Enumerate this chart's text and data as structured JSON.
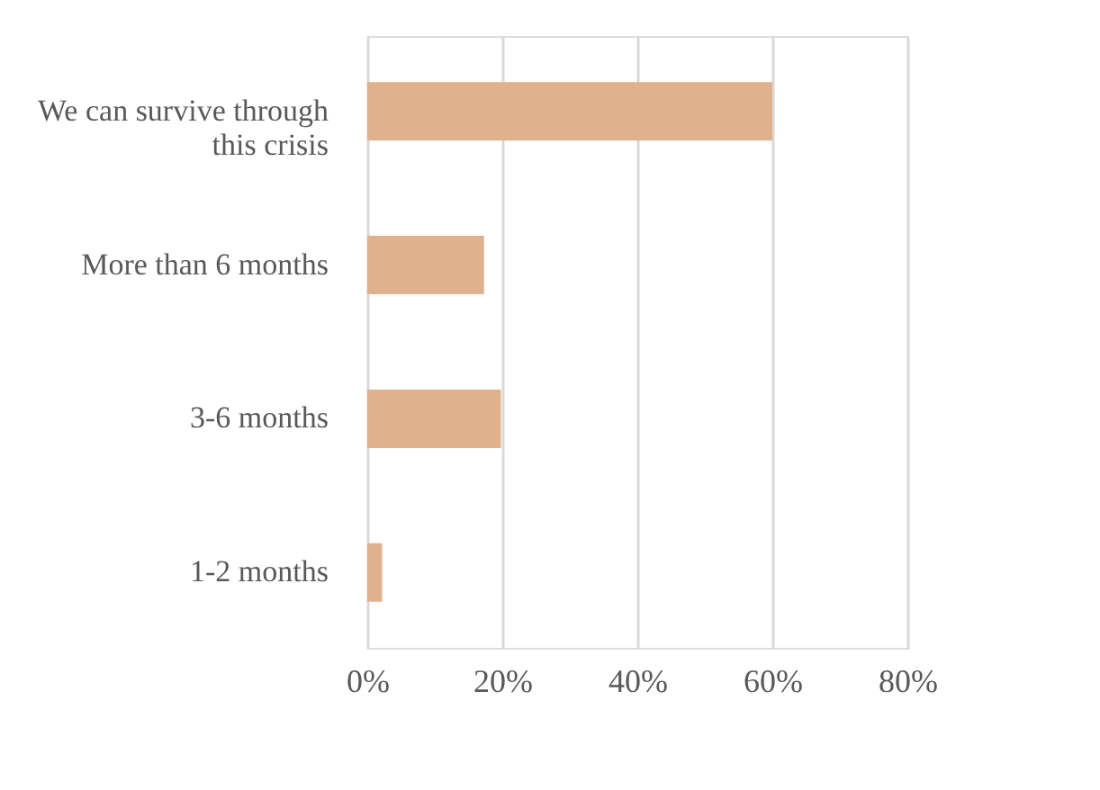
{
  "chart_data": {
    "type": "bar",
    "orientation": "horizontal",
    "categories": [
      "We can survive through this crisis",
      "More than 6 months",
      "3-6 months",
      "1-2 months"
    ],
    "values": [
      60,
      17.3,
      19.8,
      2.2
    ],
    "color": "#dfb18c",
    "xlim": [
      0,
      80
    ],
    "xticks": [
      {
        "value": 0,
        "label": "0%"
      },
      {
        "value": 20,
        "label": "20%"
      },
      {
        "value": 40,
        "label": "40%"
      },
      {
        "value": 60,
        "label": "60%"
      },
      {
        "value": 80,
        "label": "80%"
      }
    ],
    "grid": "x"
  }
}
